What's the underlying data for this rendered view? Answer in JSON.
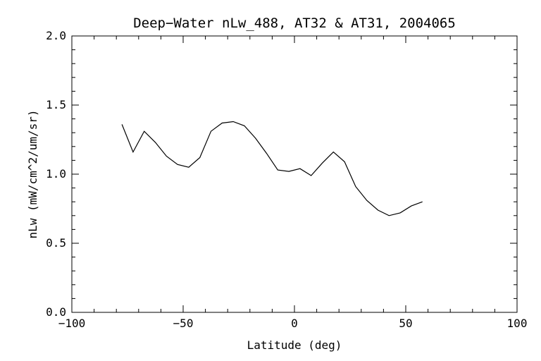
{
  "chart_data": {
    "type": "line",
    "title": "Deep−Water nLw_488, AT32 & AT31, 2004065",
    "xlabel": "Latitude (deg)",
    "ylabel": "nLw (mW/cm^2/um/sr)",
    "xlim": [
      -100,
      100
    ],
    "ylim": [
      0.0,
      2.0
    ],
    "x_ticks": [
      -100,
      -50,
      0,
      50,
      100
    ],
    "x_tick_labels": [
      "−100",
      "−50",
      "0",
      "50",
      "100"
    ],
    "y_ticks": [
      0.0,
      0.5,
      1.0,
      1.5,
      2.0
    ],
    "y_tick_labels": [
      "0.0",
      "0.5",
      "1.0",
      "1.5",
      "2.0"
    ],
    "grid": false,
    "series": [
      {
        "x": [
          -77.5,
          -72.5,
          -67.5,
          -62.5,
          -57.5,
          -52.5,
          -47.5,
          -42.5,
          -37.5,
          -32.5,
          -27.5,
          -22.5,
          -17.5,
          -12.5,
          -7.5,
          -2.5,
          2.5,
          7.5,
          12.5,
          17.5,
          22.5,
          27.5,
          32.5,
          37.5,
          42.5,
          47.5,
          52.5,
          57.5
        ],
        "y": [
          1.36,
          1.16,
          1.31,
          1.23,
          1.13,
          1.07,
          1.05,
          1.12,
          1.31,
          1.37,
          1.38,
          1.35,
          1.26,
          1.15,
          1.03,
          1.02,
          1.04,
          0.99,
          1.08,
          1.16,
          1.09,
          0.91,
          0.81,
          0.74,
          0.7,
          0.72,
          0.77,
          0.8
        ],
        "color": "#000000"
      }
    ]
  }
}
